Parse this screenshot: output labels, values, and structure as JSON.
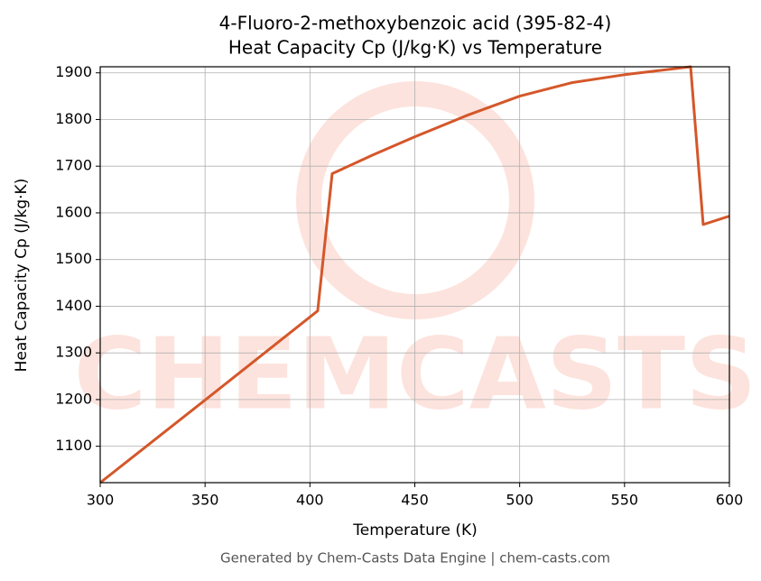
{
  "chart_data": {
    "type": "line",
    "title": "4-Fluoro-2-methoxybenzoic acid (395-82-4)",
    "subtitle": "Heat Capacity Cp (J/kg·K) vs Temperature",
    "x_label": "Temperature (K)",
    "y_label": "Heat Capacity Cp (J/kg·K)",
    "footer": "Generated by Chem-Casts Data Engine | chem-casts.com",
    "watermark": "CHEMCASTS",
    "x": [
      300,
      350,
      403.7,
      410.6,
      430,
      450,
      475,
      500,
      525,
      550,
      581.5,
      587.5,
      600
    ],
    "series": [
      {
        "name": "Cp",
        "color": "#d4572a",
        "values": [
          1022,
          1199,
          1390,
          1684,
          1724,
          1763,
          1809,
          1850,
          1879,
          1896,
          1913,
          1575,
          1593
        ]
      }
    ],
    "xlim": [
      300,
      600
    ],
    "ylim": [
      1022,
      1913
    ],
    "xticks": [
      300,
      350,
      400,
      450,
      500,
      550,
      600
    ],
    "yticks": [
      1100,
      1200,
      1300,
      1400,
      1500,
      1600,
      1700,
      1800,
      1900
    ],
    "grid": true
  }
}
